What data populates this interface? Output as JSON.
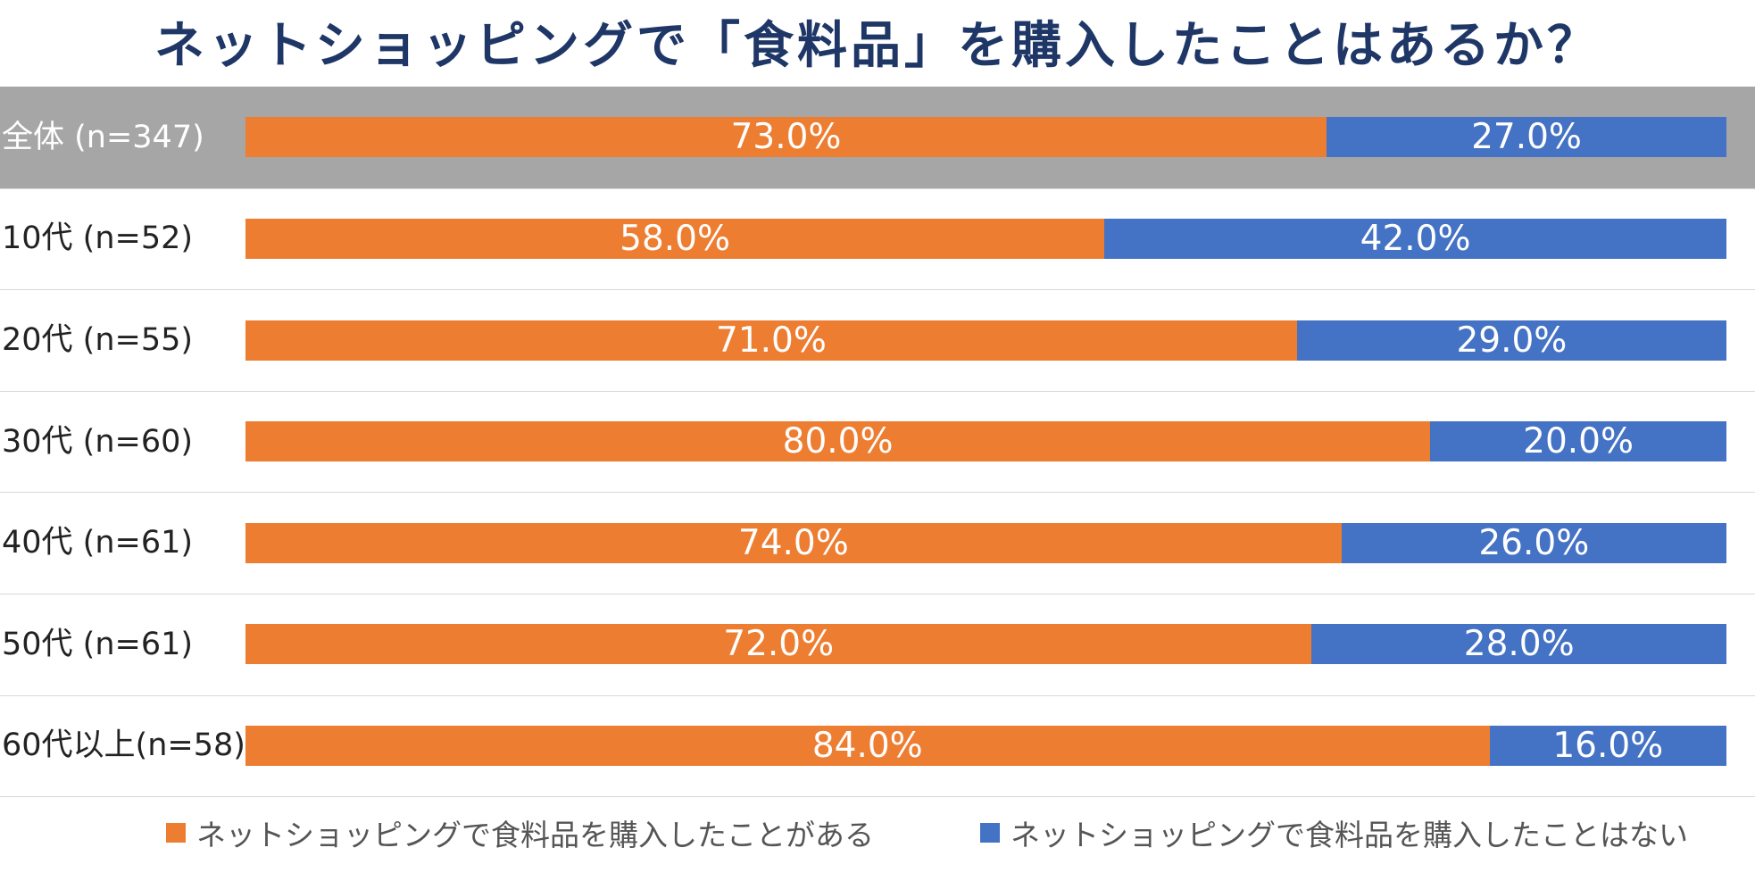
{
  "chart_data": {
    "type": "bar",
    "orientation": "horizontal",
    "stacked": true,
    "percent_stacked": true,
    "title": "ネットショッピングで「食料品」を購入したことはあるか？",
    "categories": [
      "全体 (n=347)",
      "10代 (n=52)",
      "20代 (n=55)",
      "30代 (n=60)",
      "40代 (n=61)",
      "50代 (n=61)",
      "60代以上(n=58)"
    ],
    "highlighted_category": "全体 (n=347)",
    "series": [
      {
        "name": "ネットショッピングで食料品を購入したことがある",
        "color": "#ed7d31",
        "values": [
          73.0,
          58.0,
          71.0,
          80.0,
          74.0,
          72.0,
          84.0
        ],
        "labels": [
          "73.0%",
          "58.0%",
          "71.0%",
          "80.0%",
          "74.0%",
          "72.0%",
          "84.0%"
        ]
      },
      {
        "name": "ネットショッピングで食料品を購入したことはない",
        "color": "#4472c4",
        "values": [
          27.0,
          42.0,
          29.0,
          20.0,
          26.0,
          28.0,
          16.0
        ],
        "labels": [
          "27.0%",
          "42.0%",
          "29.0%",
          "20.0%",
          "26.0%",
          "28.0%",
          "16.0%"
        ]
      }
    ],
    "xlim": [
      0,
      100
    ],
    "legend_position": "bottom",
    "grid": false,
    "colors": {
      "highlight_band": "#a6a6a6",
      "separator": "#d9d9d9",
      "title": "#1f3767"
    }
  }
}
